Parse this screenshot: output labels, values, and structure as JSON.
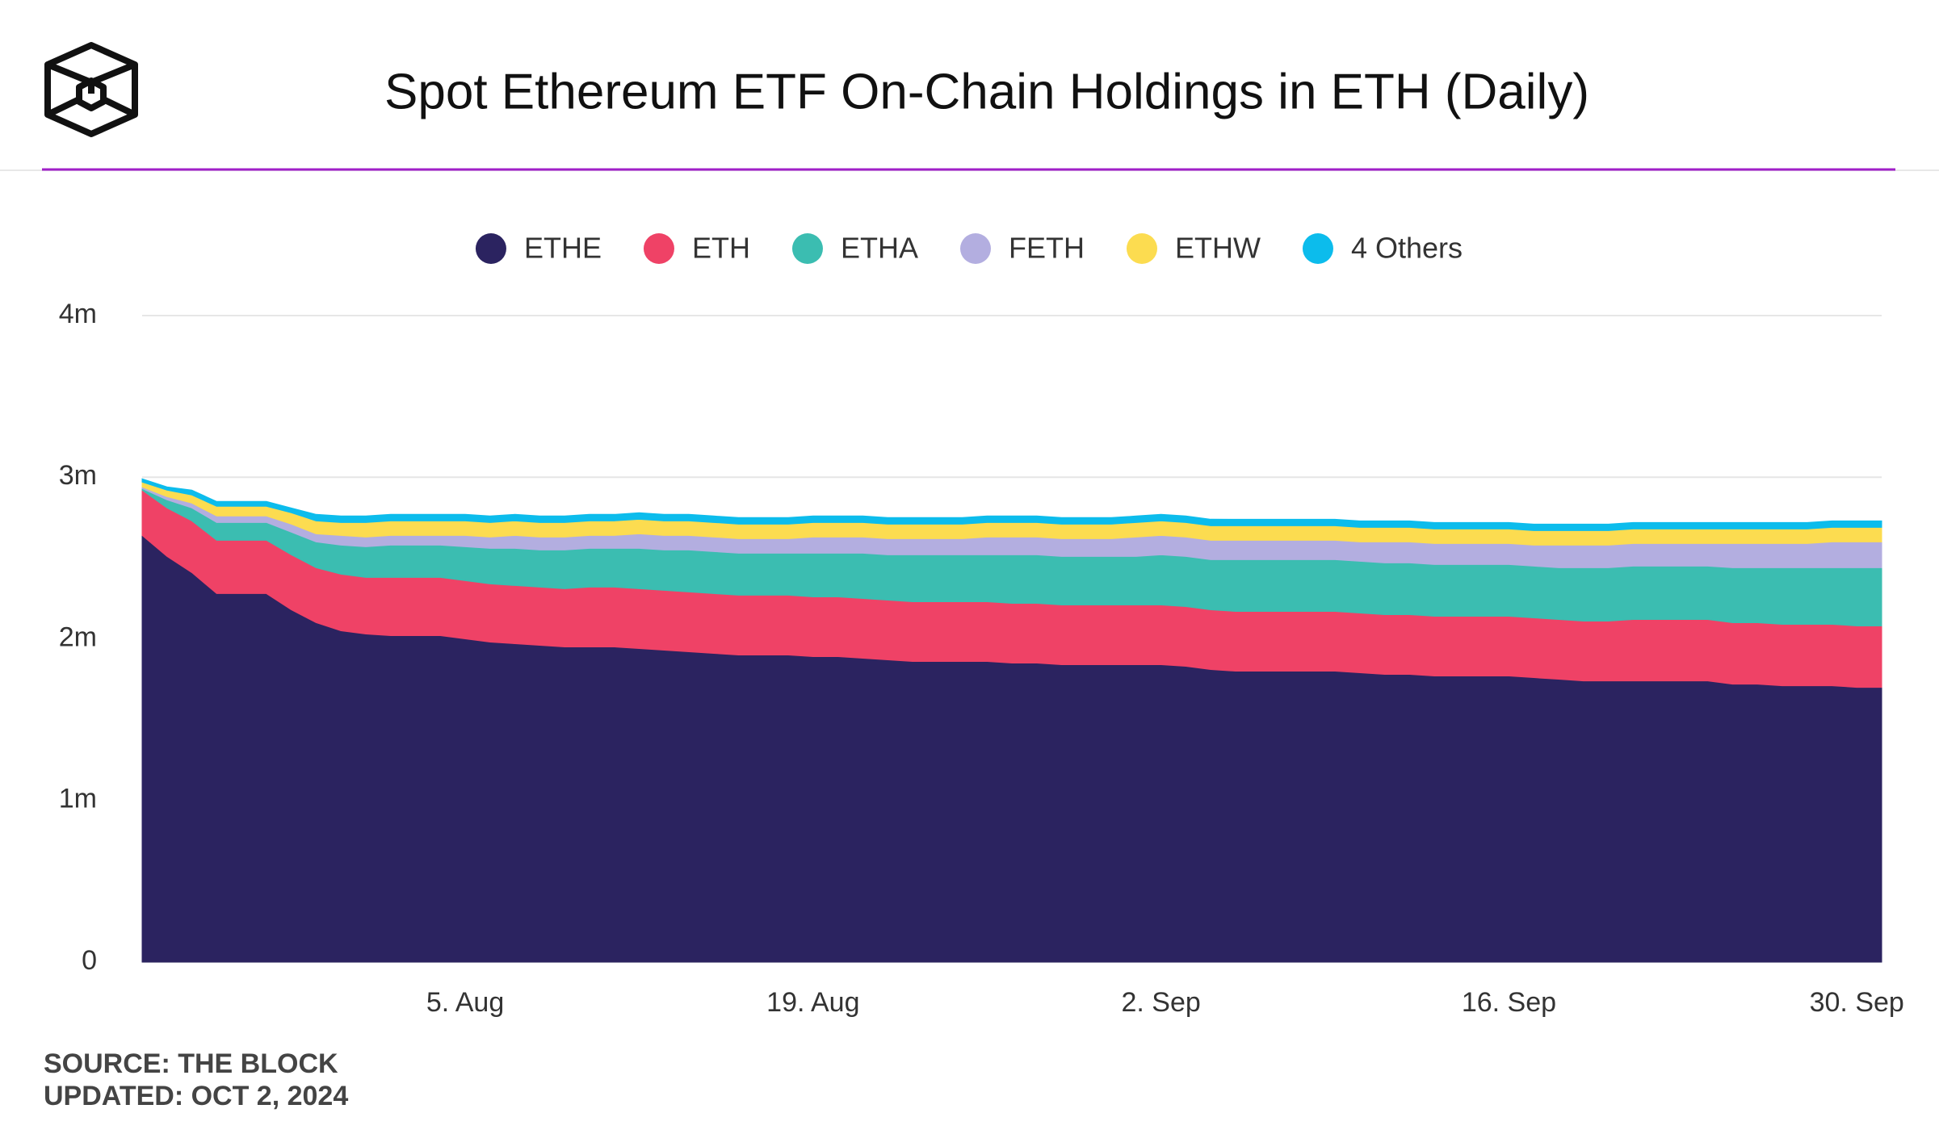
{
  "chart_data": {
    "type": "stacked-area",
    "title": "Spot Ethereum ETF On-Chain Holdings in ETH (Daily)",
    "source": "SOURCE: THE BLOCK",
    "updated": "UPDATED: OCT 2, 2024",
    "x": [
      "23. Jul",
      "24. Jul",
      "25. Jul",
      "26. Jul",
      "27. Jul",
      "28. Jul",
      "29. Jul",
      "30. Jul",
      "31. Jul",
      "1. Aug",
      "2. Aug",
      "3. Aug",
      "4. Aug",
      "5. Aug",
      "6. Aug",
      "7. Aug",
      "8. Aug",
      "9. Aug",
      "10. Aug",
      "11. Aug",
      "12. Aug",
      "13. Aug",
      "14. Aug",
      "15. Aug",
      "16. Aug",
      "17. Aug",
      "18. Aug",
      "19. Aug",
      "20. Aug",
      "21. Aug",
      "22. Aug",
      "23. Aug",
      "24. Aug",
      "25. Aug",
      "26. Aug",
      "27. Aug",
      "28. Aug",
      "29. Aug",
      "30. Aug",
      "31. Aug",
      "1. Sep",
      "2. Sep",
      "3. Sep",
      "4. Sep",
      "5. Sep",
      "6. Sep",
      "7. Sep",
      "8. Sep",
      "9. Sep",
      "10. Sep",
      "11. Sep",
      "12. Sep",
      "13. Sep",
      "14. Sep",
      "15. Sep",
      "16. Sep",
      "17. Sep",
      "18. Sep",
      "19. Sep",
      "20. Sep",
      "21. Sep",
      "22. Sep",
      "23. Sep",
      "24. Sep",
      "25. Sep",
      "26. Sep",
      "27. Sep",
      "28. Sep",
      "29. Sep",
      "30. Sep",
      "1. Oct"
    ],
    "xticks": [
      "5. Aug",
      "19. Aug",
      "2. Sep",
      "16. Sep",
      "30. Sep"
    ],
    "ylim": [
      0,
      4
    ],
    "yticks": [
      0,
      {
        "value": 1,
        "label": "1m"
      },
      {
        "value": 2,
        "label": "2m"
      },
      {
        "value": 3,
        "label": "3m"
      },
      {
        "value": 4,
        "label": "4m"
      }
    ],
    "grid": true,
    "legend": "top",
    "series": [
      {
        "name": "ETHE",
        "color": "#2b2360",
        "values": [
          2.64,
          2.51,
          2.41,
          2.28,
          2.28,
          2.28,
          2.18,
          2.1,
          2.05,
          2.03,
          2.02,
          2.02,
          2.02,
          2.0,
          1.98,
          1.97,
          1.96,
          1.95,
          1.95,
          1.95,
          1.94,
          1.93,
          1.92,
          1.91,
          1.9,
          1.9,
          1.9,
          1.89,
          1.89,
          1.88,
          1.87,
          1.86,
          1.86,
          1.86,
          1.86,
          1.85,
          1.85,
          1.84,
          1.84,
          1.84,
          1.84,
          1.84,
          1.83,
          1.81,
          1.8,
          1.8,
          1.8,
          1.8,
          1.8,
          1.79,
          1.78,
          1.78,
          1.77,
          1.77,
          1.77,
          1.77,
          1.76,
          1.75,
          1.74,
          1.74,
          1.74,
          1.74,
          1.74,
          1.74,
          1.72,
          1.72,
          1.71,
          1.71,
          1.71,
          1.7,
          1.7
        ]
      },
      {
        "name": "ETH",
        "color": "#ef4266",
        "values": [
          0.28,
          0.3,
          0.32,
          0.33,
          0.33,
          0.33,
          0.34,
          0.34,
          0.35,
          0.35,
          0.36,
          0.36,
          0.36,
          0.36,
          0.36,
          0.36,
          0.36,
          0.36,
          0.37,
          0.37,
          0.37,
          0.37,
          0.37,
          0.37,
          0.37,
          0.37,
          0.37,
          0.37,
          0.37,
          0.37,
          0.37,
          0.37,
          0.37,
          0.37,
          0.37,
          0.37,
          0.37,
          0.37,
          0.37,
          0.37,
          0.37,
          0.37,
          0.37,
          0.37,
          0.37,
          0.37,
          0.37,
          0.37,
          0.37,
          0.37,
          0.37,
          0.37,
          0.37,
          0.37,
          0.37,
          0.37,
          0.37,
          0.37,
          0.37,
          0.37,
          0.38,
          0.38,
          0.38,
          0.38,
          0.38,
          0.38,
          0.38,
          0.38,
          0.38,
          0.38,
          0.38
        ]
      },
      {
        "name": "ETHA",
        "color": "#3bbdb1",
        "values": [
          0.01,
          0.05,
          0.08,
          0.11,
          0.11,
          0.11,
          0.14,
          0.16,
          0.18,
          0.19,
          0.2,
          0.2,
          0.2,
          0.21,
          0.22,
          0.23,
          0.23,
          0.24,
          0.24,
          0.24,
          0.25,
          0.25,
          0.26,
          0.26,
          0.26,
          0.26,
          0.26,
          0.27,
          0.27,
          0.28,
          0.28,
          0.29,
          0.29,
          0.29,
          0.29,
          0.3,
          0.3,
          0.3,
          0.3,
          0.3,
          0.3,
          0.31,
          0.31,
          0.31,
          0.32,
          0.32,
          0.32,
          0.32,
          0.32,
          0.32,
          0.32,
          0.32,
          0.32,
          0.32,
          0.32,
          0.32,
          0.32,
          0.32,
          0.33,
          0.33,
          0.33,
          0.33,
          0.33,
          0.33,
          0.34,
          0.34,
          0.35,
          0.35,
          0.35,
          0.36,
          0.36
        ]
      },
      {
        "name": "FETH",
        "color": "#b3aee0",
        "values": [
          0.01,
          0.02,
          0.03,
          0.04,
          0.04,
          0.04,
          0.05,
          0.05,
          0.06,
          0.06,
          0.06,
          0.06,
          0.06,
          0.07,
          0.07,
          0.08,
          0.08,
          0.08,
          0.08,
          0.08,
          0.09,
          0.09,
          0.09,
          0.09,
          0.09,
          0.09,
          0.09,
          0.1,
          0.1,
          0.1,
          0.1,
          0.1,
          0.1,
          0.1,
          0.11,
          0.11,
          0.11,
          0.11,
          0.11,
          0.11,
          0.12,
          0.12,
          0.12,
          0.12,
          0.12,
          0.12,
          0.12,
          0.12,
          0.12,
          0.12,
          0.13,
          0.13,
          0.13,
          0.13,
          0.13,
          0.13,
          0.13,
          0.14,
          0.14,
          0.14,
          0.14,
          0.14,
          0.14,
          0.14,
          0.15,
          0.15,
          0.15,
          0.15,
          0.16,
          0.16,
          0.16
        ]
      },
      {
        "name": "ETHW",
        "color": "#fcdc50",
        "values": [
          0.03,
          0.04,
          0.05,
          0.06,
          0.06,
          0.06,
          0.07,
          0.08,
          0.08,
          0.09,
          0.09,
          0.09,
          0.09,
          0.09,
          0.09,
          0.09,
          0.09,
          0.09,
          0.09,
          0.09,
          0.09,
          0.09,
          0.09,
          0.09,
          0.09,
          0.09,
          0.09,
          0.09,
          0.09,
          0.09,
          0.09,
          0.09,
          0.09,
          0.09,
          0.09,
          0.09,
          0.09,
          0.09,
          0.09,
          0.09,
          0.09,
          0.09,
          0.09,
          0.09,
          0.09,
          0.09,
          0.09,
          0.09,
          0.09,
          0.09,
          0.09,
          0.09,
          0.09,
          0.09,
          0.09,
          0.09,
          0.09,
          0.09,
          0.09,
          0.09,
          0.09,
          0.09,
          0.09,
          0.09,
          0.09,
          0.09,
          0.09,
          0.09,
          0.09,
          0.09,
          0.09
        ]
      },
      {
        "name": "4 Others",
        "color": "#0cbcec",
        "values": [
          0.02,
          0.02,
          0.03,
          0.03,
          0.03,
          0.03,
          0.03,
          0.04,
          0.04,
          0.04,
          0.04,
          0.04,
          0.04,
          0.04,
          0.04,
          0.04,
          0.04,
          0.04,
          0.04,
          0.04,
          0.04,
          0.04,
          0.04,
          0.04,
          0.04,
          0.04,
          0.04,
          0.04,
          0.04,
          0.04,
          0.04,
          0.04,
          0.04,
          0.04,
          0.04,
          0.04,
          0.04,
          0.04,
          0.04,
          0.04,
          0.04,
          0.04,
          0.04,
          0.04,
          0.04,
          0.04,
          0.04,
          0.04,
          0.04,
          0.04,
          0.04,
          0.04,
          0.04,
          0.04,
          0.04,
          0.04,
          0.04,
          0.04,
          0.04,
          0.04,
          0.04,
          0.04,
          0.04,
          0.04,
          0.04,
          0.04,
          0.04,
          0.04,
          0.04,
          0.04,
          0.04
        ]
      }
    ]
  }
}
